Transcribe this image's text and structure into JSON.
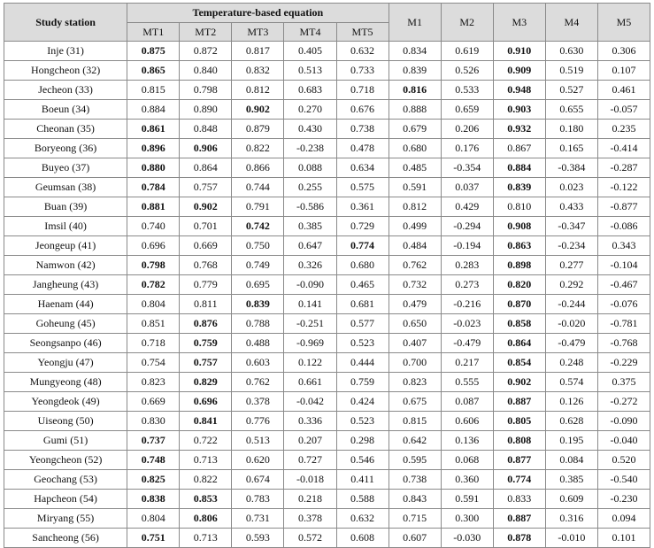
{
  "table": {
    "station_header": "Study station",
    "group_header": "Temperature-based equation",
    "group_columns": [
      "MT1",
      "MT2",
      "MT3",
      "MT4",
      "MT5"
    ],
    "other_columns": [
      "M1",
      "M2",
      "M3",
      "M4",
      "M5"
    ],
    "rows": [
      {
        "station": "Inje (31)",
        "values": [
          "0.875",
          "0.872",
          "0.817",
          "0.405",
          "0.632",
          "0.834",
          "0.619",
          "0.910",
          "0.630",
          "0.306"
        ],
        "bold": [
          0,
          7
        ]
      },
      {
        "station": "Hongcheon (32)",
        "values": [
          "0.865",
          "0.840",
          "0.832",
          "0.513",
          "0.733",
          "0.839",
          "0.526",
          "0.909",
          "0.519",
          "0.107"
        ],
        "bold": [
          0,
          7
        ]
      },
      {
        "station": "Jecheon (33)",
        "values": [
          "0.815",
          "0.798",
          "0.812",
          "0.683",
          "0.718",
          "0.816",
          "0.533",
          "0.948",
          "0.527",
          "0.461"
        ],
        "bold": [
          5,
          7
        ]
      },
      {
        "station": "Boeun (34)",
        "values": [
          "0.884",
          "0.890",
          "0.902",
          "0.270",
          "0.676",
          "0.888",
          "0.659",
          "0.903",
          "0.655",
          "-0.057"
        ],
        "bold": [
          2,
          7
        ]
      },
      {
        "station": "Cheonan (35)",
        "values": [
          "0.861",
          "0.848",
          "0.879",
          "0.430",
          "0.738",
          "0.679",
          "0.206",
          "0.932",
          "0.180",
          "0.235"
        ],
        "bold": [
          0,
          7
        ]
      },
      {
        "station": "Boryeong (36)",
        "values": [
          "0.896",
          "0.906",
          "0.822",
          "-0.238",
          "0.478",
          "0.680",
          "0.176",
          "0.867",
          "0.165",
          "-0.414"
        ],
        "bold": [
          0,
          1
        ]
      },
      {
        "station": "Buyeo (37)",
        "values": [
          "0.880",
          "0.864",
          "0.866",
          "0.088",
          "0.634",
          "0.485",
          "-0.354",
          "0.884",
          "-0.384",
          "-0.287"
        ],
        "bold": [
          0,
          7
        ]
      },
      {
        "station": "Geumsan (38)",
        "values": [
          "0.784",
          "0.757",
          "0.744",
          "0.255",
          "0.575",
          "0.591",
          "0.037",
          "0.839",
          "0.023",
          "-0.122"
        ],
        "bold": [
          0,
          7
        ]
      },
      {
        "station": "Buan (39)",
        "values": [
          "0.881",
          "0.902",
          "0.791",
          "-0.586",
          "0.361",
          "0.812",
          "0.429",
          "0.810",
          "0.433",
          "-0.877"
        ],
        "bold": [
          0,
          1
        ]
      },
      {
        "station": "Imsil (40)",
        "values": [
          "0.740",
          "0.701",
          "0.742",
          "0.385",
          "0.729",
          "0.499",
          "-0.294",
          "0.908",
          "-0.347",
          "-0.086"
        ],
        "bold": [
          2,
          7
        ]
      },
      {
        "station": "Jeongeup (41)",
        "values": [
          "0.696",
          "0.669",
          "0.750",
          "0.647",
          "0.774",
          "0.484",
          "-0.194",
          "0.863",
          "-0.234",
          "0.343"
        ],
        "bold": [
          4,
          7
        ]
      },
      {
        "station": "Namwon (42)",
        "values": [
          "0.798",
          "0.768",
          "0.749",
          "0.326",
          "0.680",
          "0.762",
          "0.283",
          "0.898",
          "0.277",
          "-0.104"
        ],
        "bold": [
          0,
          7
        ]
      },
      {
        "station": "Jangheung (43)",
        "values": [
          "0.782",
          "0.779",
          "0.695",
          "-0.090",
          "0.465",
          "0.732",
          "0.273",
          "0.820",
          "0.292",
          "-0.467"
        ],
        "bold": [
          0,
          7
        ]
      },
      {
        "station": "Haenam (44)",
        "values": [
          "0.804",
          "0.811",
          "0.839",
          "0.141",
          "0.681",
          "0.479",
          "-0.216",
          "0.870",
          "-0.244",
          "-0.076"
        ],
        "bold": [
          2,
          7
        ]
      },
      {
        "station": "Goheung (45)",
        "values": [
          "0.851",
          "0.876",
          "0.788",
          "-0.251",
          "0.577",
          "0.650",
          "-0.023",
          "0.858",
          "-0.020",
          "-0.781"
        ],
        "bold": [
          1,
          7
        ]
      },
      {
        "station": "Seongsanpo (46)",
        "values": [
          "0.718",
          "0.759",
          "0.488",
          "-0.969",
          "0.523",
          "0.407",
          "-0.479",
          "0.864",
          "-0.479",
          "-0.768"
        ],
        "bold": [
          1,
          7
        ]
      },
      {
        "station": "Yeongju (47)",
        "values": [
          "0.754",
          "0.757",
          "0.603",
          "0.122",
          "0.444",
          "0.700",
          "0.217",
          "0.854",
          "0.248",
          "-0.229"
        ],
        "bold": [
          1,
          7
        ]
      },
      {
        "station": "Mungyeong (48)",
        "values": [
          "0.823",
          "0.829",
          "0.762",
          "0.661",
          "0.759",
          "0.823",
          "0.555",
          "0.902",
          "0.574",
          "0.375"
        ],
        "bold": [
          1,
          7
        ]
      },
      {
        "station": "Yeongdeok (49)",
        "values": [
          "0.669",
          "0.696",
          "0.378",
          "-0.042",
          "0.424",
          "0.675",
          "0.087",
          "0.887",
          "0.126",
          "-0.272"
        ],
        "bold": [
          1,
          7
        ]
      },
      {
        "station": "Uiseong (50)",
        "values": [
          "0.830",
          "0.841",
          "0.776",
          "0.336",
          "0.523",
          "0.815",
          "0.606",
          "0.805",
          "0.628",
          "-0.090"
        ],
        "bold": [
          1,
          7
        ]
      },
      {
        "station": "Gumi (51)",
        "values": [
          "0.737",
          "0.722",
          "0.513",
          "0.207",
          "0.298",
          "0.642",
          "0.136",
          "0.808",
          "0.195",
          "-0.040"
        ],
        "bold": [
          0,
          7
        ]
      },
      {
        "station": "Yeongcheon (52)",
        "values": [
          "0.748",
          "0.713",
          "0.620",
          "0.727",
          "0.546",
          "0.595",
          "0.068",
          "0.877",
          "0.084",
          "0.520"
        ],
        "bold": [
          0,
          7
        ]
      },
      {
        "station": "Geochang (53)",
        "values": [
          "0.825",
          "0.822",
          "0.674",
          "-0.018",
          "0.411",
          "0.738",
          "0.360",
          "0.774",
          "0.385",
          "-0.540"
        ],
        "bold": [
          0,
          7
        ]
      },
      {
        "station": "Hapcheon (54)",
        "values": [
          "0.838",
          "0.853",
          "0.783",
          "0.218",
          "0.588",
          "0.843",
          "0.591",
          "0.833",
          "0.609",
          "-0.230"
        ],
        "bold": [
          0,
          1
        ]
      },
      {
        "station": "Miryang (55)",
        "values": [
          "0.804",
          "0.806",
          "0.731",
          "0.378",
          "0.632",
          "0.715",
          "0.300",
          "0.887",
          "0.316",
          "0.094"
        ],
        "bold": [
          1,
          7
        ]
      },
      {
        "station": "Sancheong (56)",
        "values": [
          "0.751",
          "0.713",
          "0.593",
          "0.572",
          "0.608",
          "0.607",
          "-0.030",
          "0.878",
          "-0.010",
          "0.101"
        ],
        "bold": [
          0,
          7
        ]
      }
    ]
  }
}
